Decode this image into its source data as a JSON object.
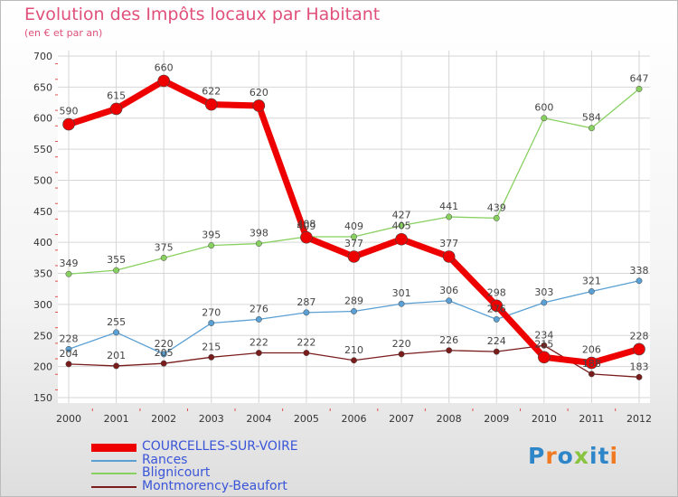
{
  "header": {
    "title": "Evolution des Impôts locaux par Habitant",
    "subtitle": "(en € et par an)"
  },
  "logo": {
    "text": "Proxiti"
  },
  "chart_data": {
    "type": "line",
    "x": [
      "2000",
      "2001",
      "2002",
      "2003",
      "2004",
      "2005",
      "2006",
      "2007",
      "2008",
      "2009",
      "2010",
      "2011",
      "2012"
    ],
    "ylim": [
      150,
      700
    ],
    "yticks": [
      150,
      200,
      250,
      300,
      350,
      400,
      450,
      500,
      550,
      600,
      650,
      700
    ],
    "grid": true,
    "legend_position": "bottom-left",
    "series": [
      {
        "name": "COURCELLES-SUR-VOIRE",
        "color": "#ee0000",
        "values": [
          590,
          615,
          660,
          622,
          620,
          408,
          377,
          405,
          377,
          298,
          215,
          206,
          228
        ]
      },
      {
        "name": "Rances",
        "color": "#5aa0d4",
        "values": [
          228,
          255,
          220,
          270,
          276,
          287,
          289,
          301,
          306,
          276,
          303,
          321,
          338
        ]
      },
      {
        "name": "Blignicourt",
        "color": "#88d060",
        "values": [
          349,
          355,
          375,
          395,
          398,
          409,
          409,
          427,
          441,
          439,
          600,
          584,
          647
        ]
      },
      {
        "name": "Montmorency-Beaufort",
        "color": "#7a1c1c",
        "values": [
          204,
          201,
          205,
          215,
          222,
          222,
          210,
          220,
          226,
          224,
          234,
          188,
          183
        ]
      }
    ]
  }
}
